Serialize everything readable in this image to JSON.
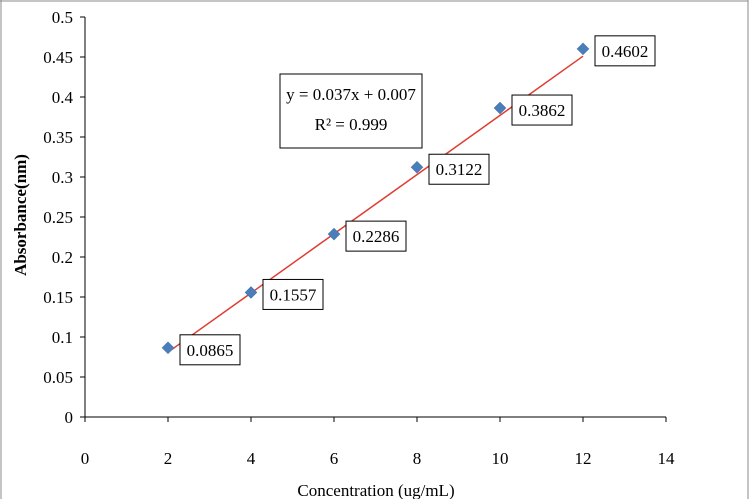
{
  "chart_data": {
    "type": "scatter",
    "xlabel": "Concentration (ug/mL)",
    "ylabel": "Absorbance(nm)",
    "xlim": [
      0,
      14
    ],
    "ylim": [
      0,
      0.5
    ],
    "x_ticks": [
      "0",
      "2",
      "4",
      "6",
      "8",
      "10",
      "12",
      "14"
    ],
    "y_ticks": [
      "0",
      "0.05",
      "0.1",
      "0.15",
      "0.2",
      "0.25",
      "0.3",
      "0.35",
      "0.4",
      "0.45",
      "0.5"
    ],
    "series": [
      {
        "x": [
          2,
          4,
          6,
          8,
          10,
          12
        ],
        "y": [
          0.0865,
          0.1557,
          0.2286,
          0.3122,
          0.3862,
          0.4602
        ],
        "labels": [
          "0.0865",
          "0.1557",
          "0.2286",
          "0.3122",
          "0.3862",
          "0.4602"
        ],
        "marker": "diamond",
        "color": "#4a7ebb"
      }
    ],
    "trendline": {
      "type": "linear",
      "slope": 0.037,
      "intercept": 0.007,
      "x_range": [
        2,
        12
      ],
      "color": "#e03c31",
      "equation": "y = 0.037x + 0.007",
      "r2": "R² = 0.999"
    },
    "grid": false,
    "legend": "none"
  }
}
